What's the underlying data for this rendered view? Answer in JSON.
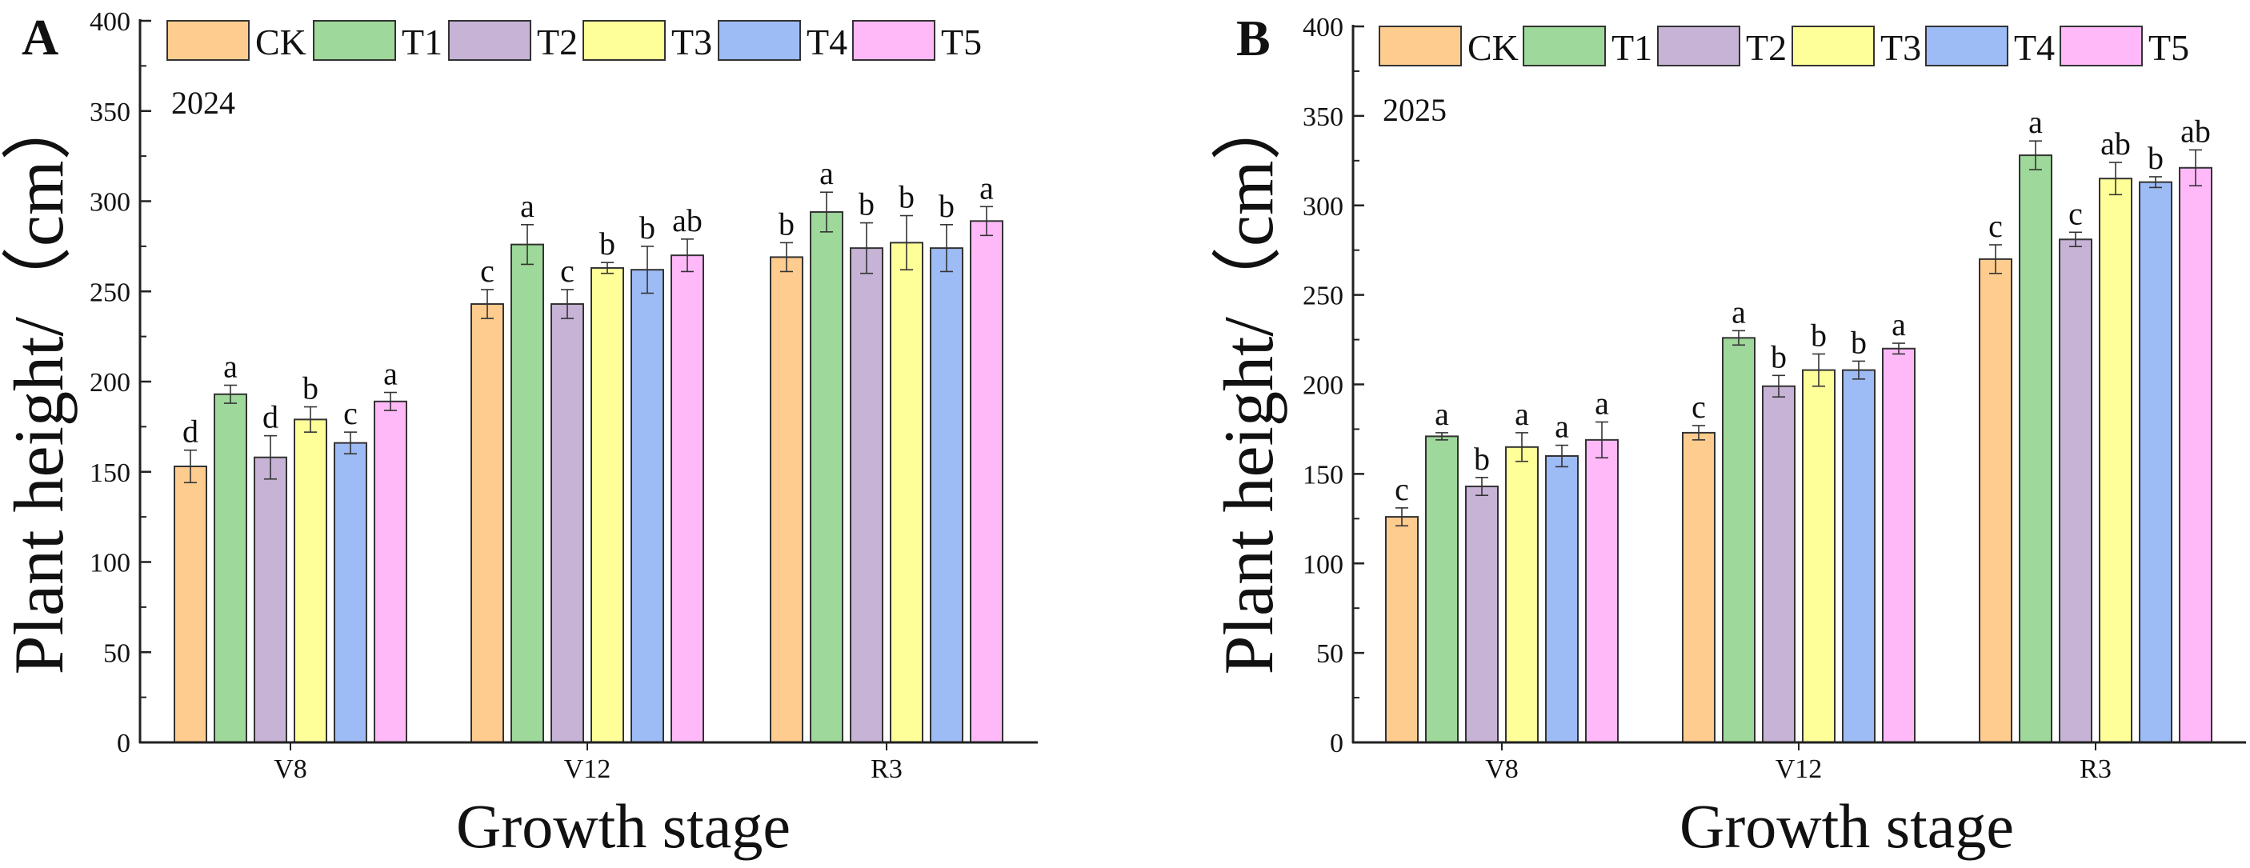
{
  "chart_data": [
    {
      "type": "bar",
      "panel_label": "A",
      "annotation": "2024",
      "xlabel": "Growth stage",
      "ylabel": "Plant height/（cm）",
      "ylim": [
        0,
        400
      ],
      "yticks": [
        0,
        50,
        100,
        150,
        200,
        250,
        300,
        350,
        400
      ],
      "categories": [
        "V8",
        "V12",
        "R3"
      ],
      "legend_position": "top",
      "series": [
        {
          "name": "CK",
          "color": "#FFCC8F",
          "values": [
            153,
            243,
            269
          ],
          "errors": [
            9,
            8,
            8
          ],
          "letters": [
            "d",
            "c",
            "b"
          ]
        },
        {
          "name": "T1",
          "color": "#9ED89A",
          "values": [
            193,
            276,
            294
          ],
          "errors": [
            5,
            11,
            11
          ],
          "letters": [
            "a",
            "a",
            "a"
          ]
        },
        {
          "name": "T2",
          "color": "#C6B3D6",
          "values": [
            158,
            243,
            274
          ],
          "errors": [
            12,
            8,
            14
          ],
          "letters": [
            "d",
            "c",
            "b"
          ]
        },
        {
          "name": "T3",
          "color": "#FFFF99",
          "values": [
            179,
            263,
            277
          ],
          "errors": [
            7,
            3,
            15
          ],
          "letters": [
            "b",
            "b",
            "b"
          ]
        },
        {
          "name": "T4",
          "color": "#9DBBF5",
          "values": [
            166,
            262,
            274
          ],
          "errors": [
            6,
            13,
            13
          ],
          "letters": [
            "c",
            "b",
            "b"
          ]
        },
        {
          "name": "T5",
          "color": "#FFB9F9",
          "values": [
            189,
            270,
            289
          ],
          "errors": [
            5,
            9,
            8
          ],
          "letters": [
            "a",
            "ab",
            "a"
          ]
        }
      ]
    },
    {
      "type": "bar",
      "panel_label": "B",
      "annotation": "2025",
      "xlabel": "Growth stage",
      "ylabel": "Plant height/（cm）",
      "ylim": [
        0,
        400
      ],
      "yticks": [
        0,
        50,
        100,
        150,
        200,
        250,
        300,
        350,
        400
      ],
      "categories": [
        "V8",
        "V12",
        "R3"
      ],
      "legend_position": "top",
      "series": [
        {
          "name": "CK",
          "color": "#FFCC8F",
          "values": [
            126,
            173,
            270
          ],
          "errors": [
            5,
            4,
            8
          ],
          "letters": [
            "c",
            "c",
            "c"
          ]
        },
        {
          "name": "T1",
          "color": "#9ED89A",
          "values": [
            171,
            226,
            328
          ],
          "errors": [
            2,
            4,
            8
          ],
          "letters": [
            "a",
            "a",
            "a"
          ]
        },
        {
          "name": "T2",
          "color": "#C6B3D6",
          "values": [
            143,
            199,
            281
          ],
          "errors": [
            5,
            6,
            4
          ],
          "letters": [
            "b",
            "b",
            "c"
          ]
        },
        {
          "name": "T3",
          "color": "#FFFF99",
          "values": [
            165,
            208,
            315
          ],
          "errors": [
            8,
            9,
            9
          ],
          "letters": [
            "a",
            "b",
            "ab"
          ]
        },
        {
          "name": "T4",
          "color": "#9DBBF5",
          "values": [
            160,
            208,
            313
          ],
          "errors": [
            6,
            5,
            3
          ],
          "letters": [
            "a",
            "b",
            "b"
          ]
        },
        {
          "name": "T5",
          "color": "#FFB9F9",
          "values": [
            169,
            220,
            321
          ],
          "errors": [
            10,
            3,
            10
          ],
          "letters": [
            "a",
            "a",
            "ab"
          ]
        }
      ]
    }
  ]
}
